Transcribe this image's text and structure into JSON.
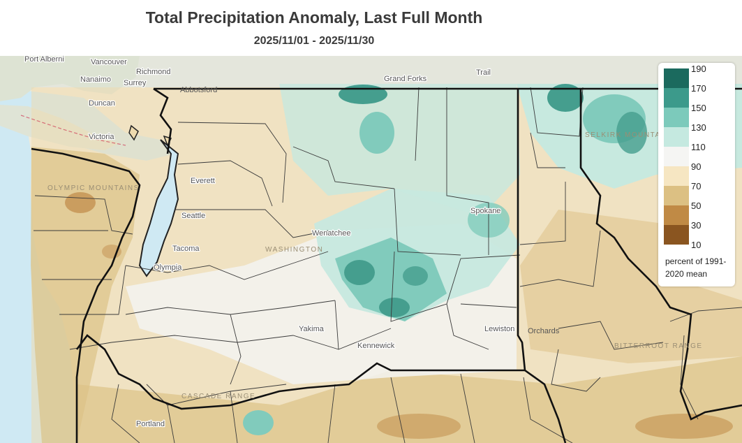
{
  "title": "Total Precipitation Anomaly, Last Full Month",
  "subtitle": "2025/11/01 - 2025/11/30",
  "legend": {
    "ticks": [
      "190",
      "170",
      "150",
      "130",
      "110",
      "90",
      "70",
      "50",
      "30",
      "10"
    ],
    "colors": [
      "#1b6a5e",
      "#3c9a8b",
      "#7ccabb",
      "#c5e9e0",
      "#f5f5f3",
      "#f6e6c2",
      "#dcc083",
      "#c08a45",
      "#8a5520"
    ],
    "caption": "percent of 1991-2020 mean"
  },
  "places": {
    "port_alberni": "Port Alberni",
    "vancouver": "Vancouver",
    "richmond": "Richmond",
    "nanaimo": "Nanaimo",
    "surrey": "Surrey",
    "duncan": "Duncan",
    "victoria": "Victoria",
    "grand_forks": "Grand Forks",
    "trail": "Trail",
    "everett": "Everett",
    "seattle": "Seattle",
    "tacoma": "Tacoma",
    "olympia": "Olympia",
    "wenatchee": "Wenatchee",
    "spokane": "Spokane",
    "yakima": "Yakima",
    "kennewick": "Kennewick",
    "lewiston": "Lewiston",
    "portland": "Portland",
    "abbotsford": "Abbotsford",
    "orchards": "Orchards"
  },
  "regions": {
    "olympic": "OLYMPIC MOUNTAINS",
    "washington": "WASHINGTON",
    "cascade": "CASCADE RANGE",
    "bitterroot": "BITTERROOT RANGE",
    "selkirk": "SELKIRK MOUNTAINS"
  }
}
